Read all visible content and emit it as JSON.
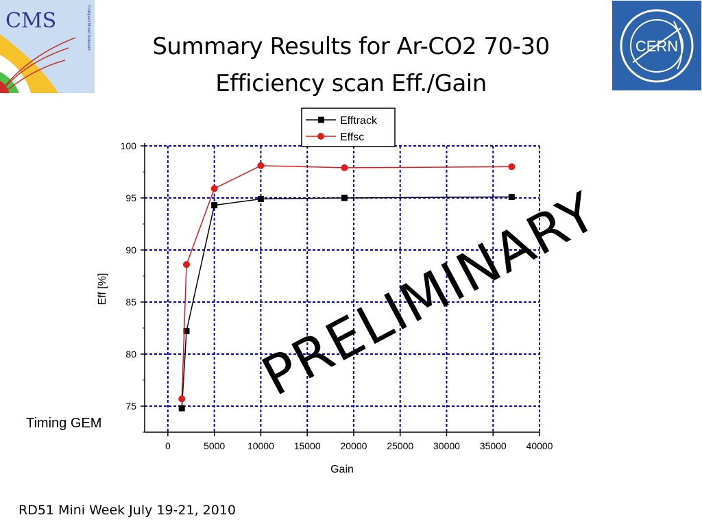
{
  "slide": {
    "title_line1": "Summary Results for Ar-CO2 70-30",
    "title_line2": "Efficiency scan Eff./Gain",
    "side_label": "Timing GEM",
    "footer": "RD51 Mini Week July 19-21, 2010",
    "watermark": "PRELIMINARY"
  },
  "logos": {
    "cms": {
      "text": "CMS",
      "subtext": "Compact Muon Solenoid",
      "icon": "cms-logo-icon"
    },
    "cern": {
      "text": "CERN",
      "icon": "cern-logo-icon",
      "color": "#2d63ad"
    }
  },
  "chart_data": {
    "type": "line",
    "xlabel": "Gain",
    "ylabel": "Eff [%]",
    "xlim": [
      -2500,
      40000
    ],
    "ylim": [
      72.5,
      100
    ],
    "xticks": [
      0,
      5000,
      10000,
      15000,
      20000,
      25000,
      30000,
      35000,
      40000
    ],
    "yticks": [
      75,
      80,
      85,
      90,
      95,
      100
    ],
    "grid": true,
    "grid_color": "#0000cc",
    "legend_position": "top",
    "series": [
      {
        "name": "Efftrack",
        "color": "#000000",
        "marker": "square",
        "x": [
          1500,
          2000,
          5000,
          10000,
          19000,
          37000
        ],
        "y": [
          74.8,
          82.2,
          94.3,
          94.9,
          95.0,
          95.1
        ]
      },
      {
        "name": "Effsc",
        "color": "#e31a1c",
        "marker": "circle",
        "x": [
          1500,
          2000,
          5000,
          10000,
          19000,
          37000
        ],
        "y": [
          75.7,
          88.6,
          95.9,
          98.1,
          97.9,
          98.0
        ]
      }
    ]
  }
}
